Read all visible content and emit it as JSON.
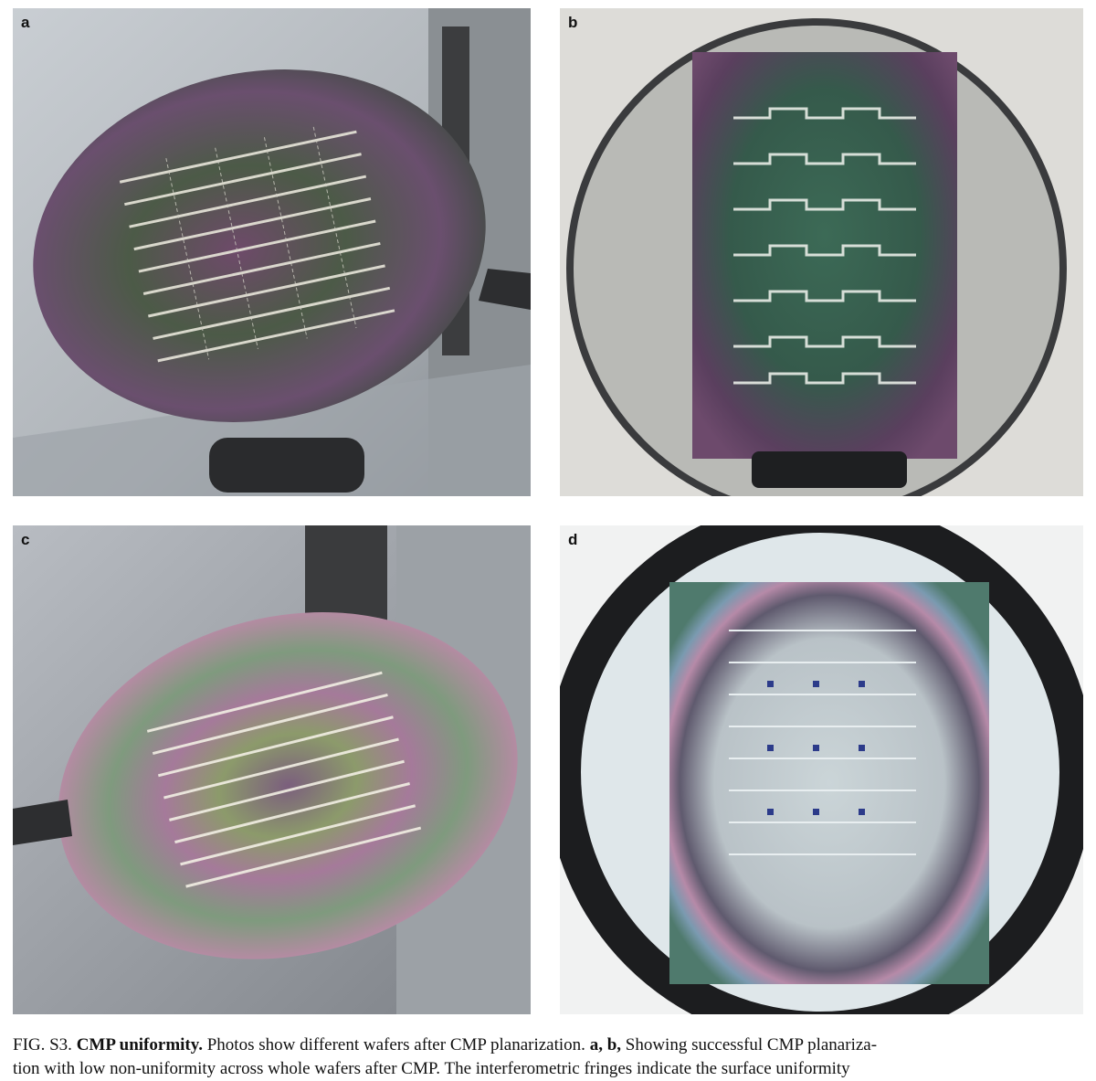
{
  "figure": {
    "panels": [
      {
        "letter": "a"
      },
      {
        "letter": "b"
      },
      {
        "letter": "c"
      },
      {
        "letter": "d"
      }
    ],
    "caption": {
      "label": "FIG. S3.",
      "title": "CMP uniformity.",
      "text": "Photos show different wafers after CMP planarization.",
      "panel_ref": "a, b,",
      "text_continued": "Showing successful CMP planariza-",
      "second_line": "tion with low non-uniformity across whole wafers after CMP. The interferometric fringes indicate the surface uniformity"
    }
  }
}
